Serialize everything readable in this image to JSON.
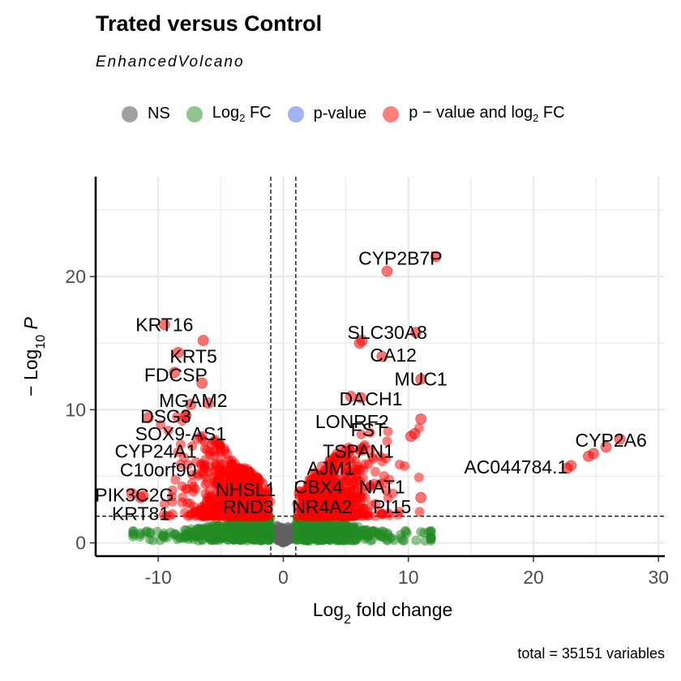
{
  "chart_data": {
    "type": "scatter",
    "title": "Trated versus Control",
    "subtitle": "EnhancedVolcano",
    "caption": "total = 35151 variables",
    "xlabel": "Log2 fold change",
    "ylabel": "-Log10 P",
    "xlabel_main": "Log",
    "xlabel_sub": "2",
    "xlabel_rest": " fold change",
    "ylabel_main": "Log",
    "ylabel_sub": "10",
    "ylabel_rest": "P",
    "xlim": [
      -15,
      30.5
    ],
    "ylim": [
      -1,
      27.5
    ],
    "x_ticks": [
      -10,
      0,
      10,
      20,
      30
    ],
    "y_ticks": [
      0,
      10,
      20
    ],
    "fc_cutoff": 1,
    "p_cutoff_line": 2,
    "grid": true,
    "legend_position": "top",
    "legend": [
      {
        "key": "NS",
        "label": "NS",
        "color": "#808080"
      },
      {
        "key": "FC",
        "label": "Log2 FC",
        "main": "Log",
        "sub": "2",
        "rest": " FC",
        "color": "#228B22"
      },
      {
        "key": "P",
        "label": "p-value",
        "color": "#4169E1"
      },
      {
        "key": "FC_P",
        "label": "p − value and log2 FC",
        "main": "p − value and log",
        "sub": "2",
        "rest": " FC",
        "color": "#FF0000"
      }
    ],
    "highlighted_points": [
      {
        "x": 12.2,
        "y": 21.5
      },
      {
        "x": 8.3,
        "y": 20.4
      },
      {
        "x": -9.5,
        "y": 16.4
      },
      {
        "x": -6.4,
        "y": 15.2
      },
      {
        "x": 6.3,
        "y": 15.2
      },
      {
        "x": 6.1,
        "y": 15.0
      },
      {
        "x": 10.6,
        "y": 15.8
      },
      {
        "x": 7.9,
        "y": 14.0
      },
      {
        "x": -8.4,
        "y": 14.3
      },
      {
        "x": -8.7,
        "y": 12.8
      },
      {
        "x": -6.5,
        "y": 12.0
      },
      {
        "x": 11.0,
        "y": 12.3
      },
      {
        "x": 5.4,
        "y": 11.0
      },
      {
        "x": 6.2,
        "y": 10.9
      },
      {
        "x": -7.4,
        "y": 10.4
      },
      {
        "x": -6.0,
        "y": 10.5
      },
      {
        "x": 11.0,
        "y": 9.3
      },
      {
        "x": 10.2,
        "y": 8.0
      },
      {
        "x": 10.5,
        "y": 8.2
      },
      {
        "x": -10.8,
        "y": 9.4
      },
      {
        "x": -7.8,
        "y": 9.6
      },
      {
        "x": 26.9,
        "y": 7.8
      },
      {
        "x": 25.8,
        "y": 7.2
      },
      {
        "x": 24.8,
        "y": 6.7
      },
      {
        "x": 24.4,
        "y": 6.5
      },
      {
        "x": 23.0,
        "y": 5.8
      },
      {
        "x": 22.7,
        "y": 5.6
      },
      {
        "x": 11.0,
        "y": 3.4
      },
      {
        "x": -12.1,
        "y": 3.7
      },
      {
        "x": -11.4,
        "y": 3.4
      },
      {
        "x": -11.2,
        "y": 3.5
      }
    ],
    "labels": [
      {
        "text": "CYP2B7P",
        "x": 12.2,
        "y": 21.5,
        "anchor": "end",
        "dx": 8,
        "dy": 10
      },
      {
        "text": "KRT16",
        "x": -9.5,
        "y": 16.4,
        "anchor": "middle",
        "dx": 0,
        "dy": 8
      },
      {
        "text": "SLC30A8",
        "x": 10.6,
        "y": 15.8,
        "anchor": "end",
        "dx": 14,
        "dy": 8
      },
      {
        "text": "KRT5",
        "x": -7.7,
        "y": 14.0,
        "anchor": "middle",
        "dx": 8,
        "dy": 8
      },
      {
        "text": "CA12",
        "x": 8.8,
        "y": 14.1,
        "anchor": "middle",
        "dx": 0,
        "dy": 8
      },
      {
        "text": "FDCSP",
        "x": -9.5,
        "y": 12.6,
        "anchor": "middle",
        "dx": 14,
        "dy": 8
      },
      {
        "text": "MUC1",
        "x": 11.0,
        "y": 12.3,
        "anchor": "middle",
        "dx": 0,
        "dy": 8
      },
      {
        "text": "DACH1",
        "x": 7.0,
        "y": 10.8,
        "anchor": "middle",
        "dx": 0,
        "dy": 8
      },
      {
        "text": "MGAM2",
        "x": -7.2,
        "y": 10.7,
        "anchor": "middle",
        "dx": 0,
        "dy": 8
      },
      {
        "text": "LONRF2",
        "x": 5.5,
        "y": 9.1,
        "anchor": "middle",
        "dx": 0,
        "dy": 8
      },
      {
        "text": "DSG3",
        "x": -9.4,
        "y": 9.5,
        "anchor": "middle",
        "dx": 0,
        "dy": 8
      },
      {
        "text": "FST",
        "x": 6.8,
        "y": 8.5,
        "anchor": "middle",
        "dx": 0,
        "dy": 8
      },
      {
        "text": "SOX9-AS1",
        "x": -8.2,
        "y": 8.2,
        "anchor": "middle",
        "dx": 0,
        "dy": 8
      },
      {
        "text": "CYP2A6",
        "x": 26.2,
        "y": 7.7,
        "anchor": "middle",
        "dx": 0,
        "dy": 8
      },
      {
        "text": "TSPAN1",
        "x": 6.0,
        "y": 6.9,
        "anchor": "middle",
        "dx": 0,
        "dy": 8
      },
      {
        "text": "CYP24A1",
        "x": -10.2,
        "y": 6.9,
        "anchor": "middle",
        "dx": 0,
        "dy": 8
      },
      {
        "text": "AC044784.1",
        "x": 18.6,
        "y": 5.7,
        "anchor": "middle",
        "dx": 0,
        "dy": 8
      },
      {
        "text": "AJM1",
        "x": 3.8,
        "y": 5.6,
        "anchor": "middle",
        "dx": 0,
        "dy": 8
      },
      {
        "text": "C10orf90",
        "x": -10.0,
        "y": 5.5,
        "anchor": "middle",
        "dx": 0,
        "dy": 8
      },
      {
        "text": "CBX4",
        "x": 2.8,
        "y": 4.2,
        "anchor": "middle",
        "dx": 0,
        "dy": 8
      },
      {
        "text": "NAT1",
        "x": 7.9,
        "y": 4.2,
        "anchor": "middle",
        "dx": 0,
        "dy": 8
      },
      {
        "text": "NHSL1",
        "x": -3.0,
        "y": 4.0,
        "anchor": "middle",
        "dx": 0,
        "dy": 8
      },
      {
        "text": "PIK3C2G",
        "x": -11.9,
        "y": 3.6,
        "anchor": "middle",
        "dx": 0,
        "dy": 8
      },
      {
        "text": "RND3",
        "x": -2.8,
        "y": 2.7,
        "anchor": "middle",
        "dx": 0,
        "dy": 8
      },
      {
        "text": "NR4A2",
        "x": 3.1,
        "y": 2.7,
        "anchor": "middle",
        "dx": 0,
        "dy": 8
      },
      {
        "text": "PI15",
        "x": 8.7,
        "y": 2.7,
        "anchor": "middle",
        "dx": 0,
        "dy": 8
      },
      {
        "text": "KRT81",
        "x": -11.4,
        "y": 2.2,
        "anchor": "middle",
        "dx": 0,
        "dy": 8
      }
    ]
  }
}
